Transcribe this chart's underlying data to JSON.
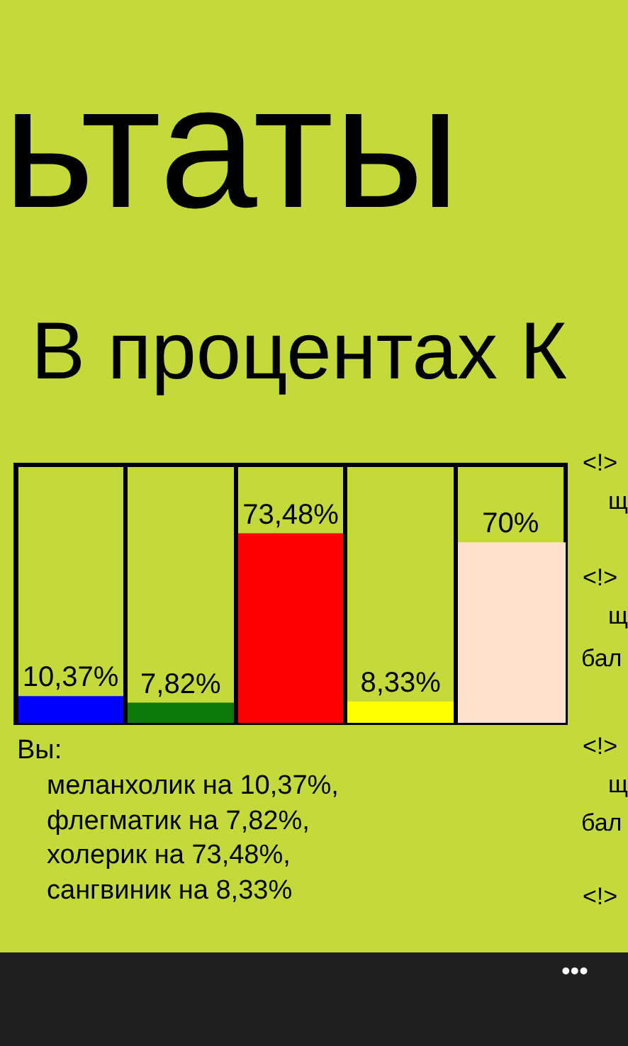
{
  "chart_data": {
    "type": "bar",
    "title": "ьтаты",
    "subtitle": "В процентах К",
    "categories": [
      null,
      null,
      null,
      null,
      null
    ],
    "values": [
      10.37,
      7.82,
      73.48,
      8.33,
      70
    ],
    "colors": [
      "#0000ff",
      "#0a7a0a",
      "#ff0000",
      "#ffff00",
      "#ffe2cc"
    ],
    "value_labels": [
      "10,37%",
      "7,82%",
      "73,48%",
      "8,33%",
      "70%"
    ],
    "ylim": [
      0,
      100
    ],
    "grid": "x",
    "tick_labels": false,
    "annotations": [
      "Вы:",
      "меланхолик на 10,37%,",
      "флегматик на 7,82%,",
      "холерик на 73,48%,",
      "сангвиник на 8,33%",
      "<!>",
      "щ",
      "<!>",
      "щ",
      "бал",
      "<!>",
      "щ",
      "бал",
      "<!>",
      "•••"
    ]
  }
}
